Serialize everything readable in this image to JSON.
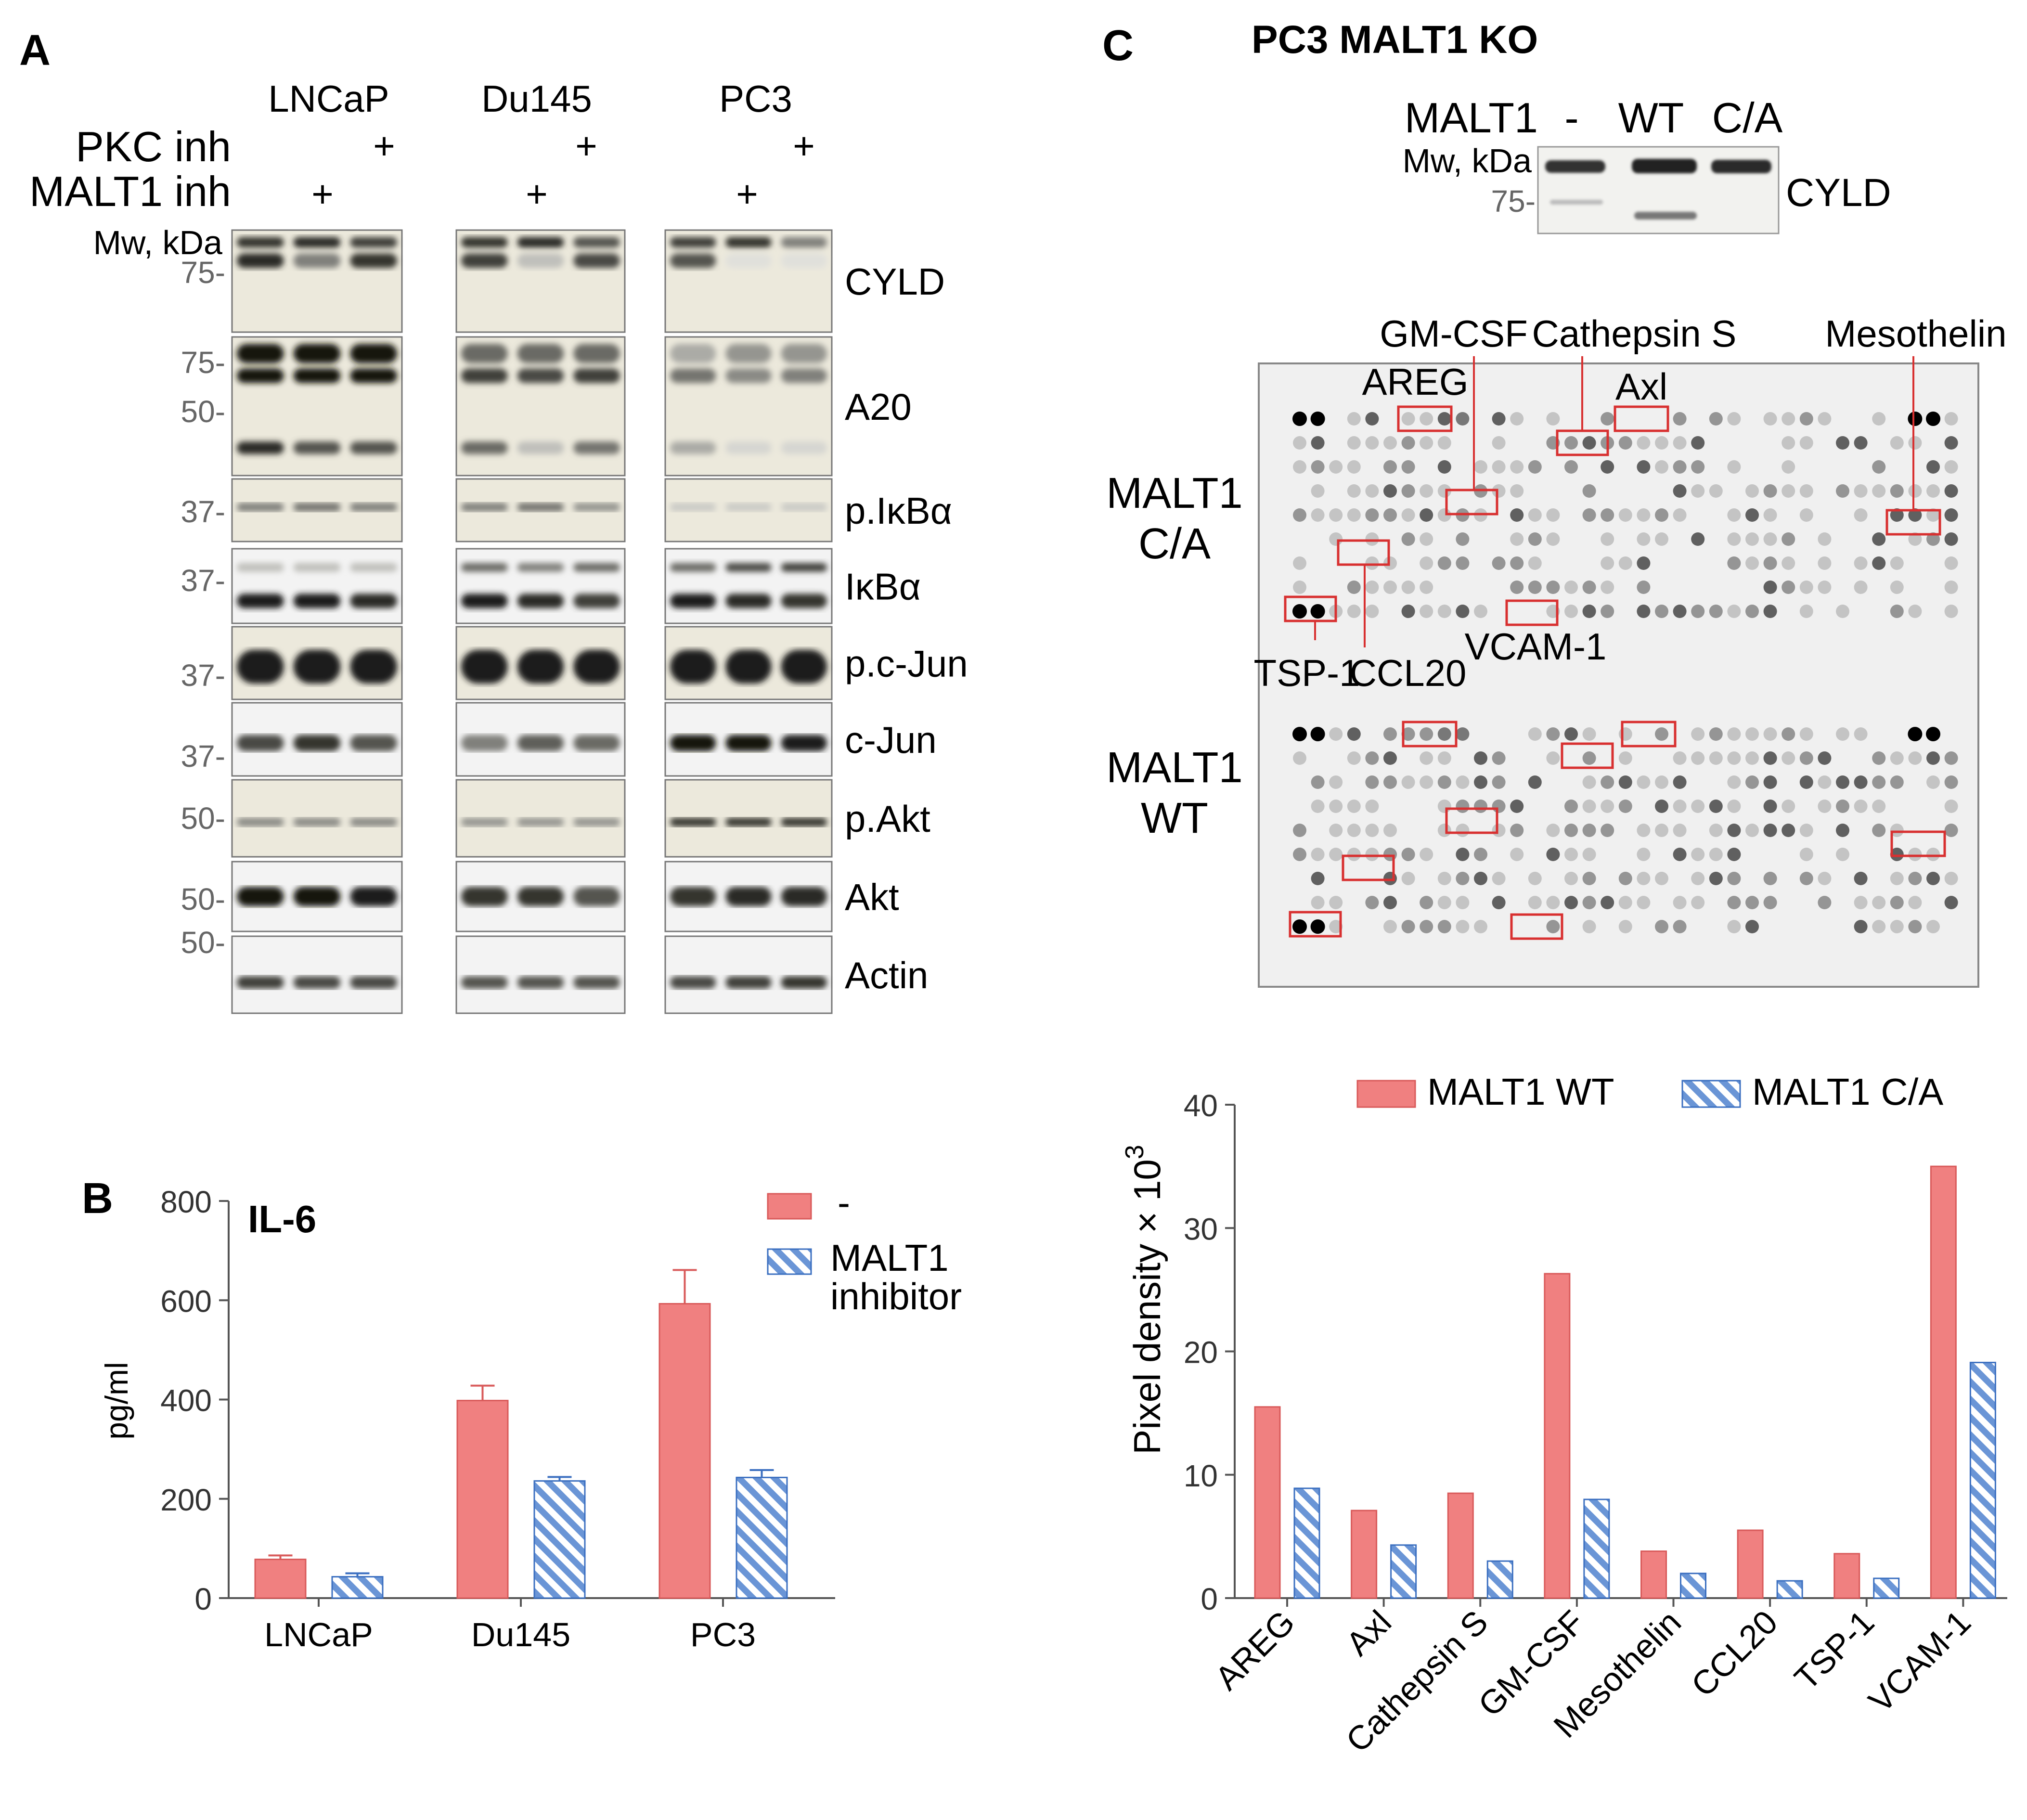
{
  "panelA": {
    "label": "A",
    "cell_lines": [
      "LNCaP",
      "Du145",
      "PC3"
    ],
    "treatments": {
      "pkc": "PKC inh",
      "malt1": "MALT1 inh",
      "plus": "+"
    },
    "mw_header": "Mw, kDa",
    "rows": [
      {
        "name": "CYLD",
        "mw": [
          "75-"
        ],
        "style": "tan"
      },
      {
        "name": "A20",
        "mw": [
          "75-",
          "50-"
        ],
        "style": "tan"
      },
      {
        "name": "p.IκBα",
        "mw": [
          "37-"
        ],
        "style": "tan"
      },
      {
        "name": "IκBα",
        "mw": [
          "37-"
        ],
        "style": "bw"
      },
      {
        "name": "p.c-Jun",
        "mw": [
          "37-"
        ],
        "style": "tan"
      },
      {
        "name": "c-Jun",
        "mw": [
          "37-"
        ],
        "style": "bw"
      },
      {
        "name": "p.Akt",
        "mw": [
          "50-"
        ],
        "style": "tan"
      },
      {
        "name": "Akt",
        "mw": [
          "50-"
        ],
        "style": "bw"
      },
      {
        "name": "Actin",
        "mw": [
          "50-"
        ],
        "style": "bw"
      }
    ]
  },
  "panelB": {
    "label": "B",
    "title": "IL-6",
    "legend": [
      "-",
      "MALT1\ninhibitor"
    ],
    "colors": {
      "control": "#f08080",
      "inhibitor": "#6a95d6"
    }
  },
  "panelC": {
    "label": "C",
    "title": "PC3 MALT1 KO",
    "western": {
      "malt1_label": "MALT1",
      "lanes": [
        "-",
        "WT",
        "C/A"
      ],
      "mw_header": "Mw, kDa",
      "mw": "75-",
      "protein": "CYLD"
    },
    "array": {
      "row_labels": [
        [
          "MALT1",
          "C/A"
        ],
        [
          "MALT1",
          "WT"
        ]
      ],
      "callouts": [
        "GM-CSF",
        "Cathepsin S",
        "Mesothelin",
        "AREG",
        "Axl",
        "TSP-1",
        "CCL20",
        "VCAM-1"
      ]
    },
    "legend": [
      "MALT1 WT",
      "MALT1 C/A"
    ],
    "ylabel_base": "Pixel density × 10",
    "ylabel_exp": "3"
  },
  "chart_data": [
    {
      "type": "bar",
      "title": "IL-6",
      "categories": [
        "LNCaP",
        "Du145",
        "PC3"
      ],
      "series": [
        {
          "name": "-",
          "values": [
            78,
            398,
            593
          ],
          "errors": [
            8,
            30,
            68
          ]
        },
        {
          "name": "MALT1 inhibitor",
          "values": [
            43,
            236,
            243
          ],
          "errors": [
            7,
            8,
            15
          ]
        }
      ],
      "xlabel": "",
      "ylabel": "pg/ml",
      "ylim": [
        0,
        800
      ],
      "yticks": [
        0,
        200,
        400,
        600,
        800
      ]
    },
    {
      "type": "bar",
      "title": "",
      "categories": [
        "AREG",
        "Axl",
        "Cathepsin S",
        "GM-CSF",
        "Mesothelin",
        "CCL20",
        "TSP-1",
        "VCAM-1"
      ],
      "series": [
        {
          "name": "MALT1 WT",
          "values": [
            15.5,
            7.1,
            8.5,
            26.3,
            3.8,
            5.5,
            3.6,
            35.0
          ]
        },
        {
          "name": "MALT1 C/A",
          "values": [
            8.9,
            4.3,
            3.0,
            8.0,
            2.0,
            1.4,
            1.6,
            19.1
          ]
        }
      ],
      "xlabel": "",
      "ylabel": "Pixel density × 10^3",
      "ylim": [
        0,
        40
      ],
      "yticks": [
        0,
        10,
        20,
        30,
        40
      ]
    }
  ]
}
